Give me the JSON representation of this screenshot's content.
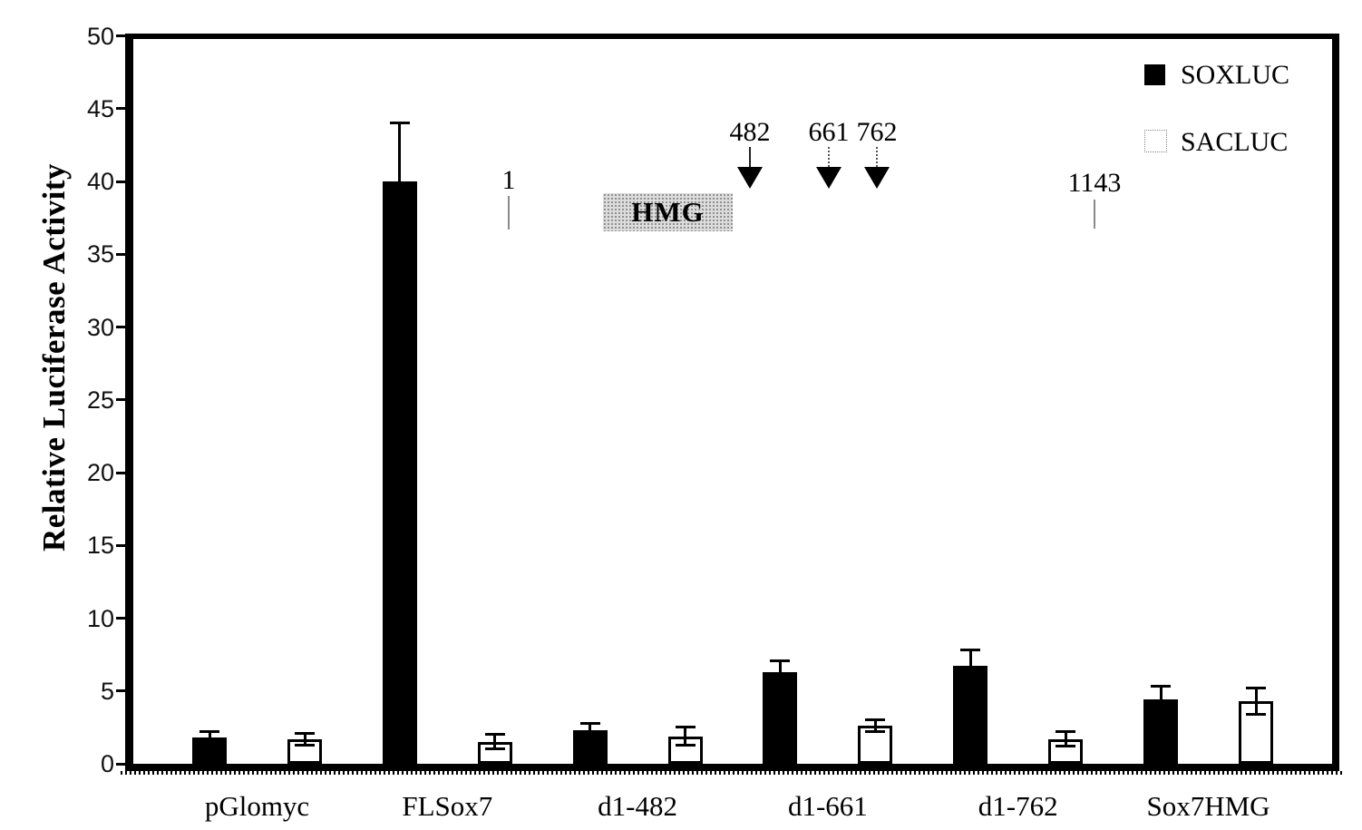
{
  "figure": {
    "type": "scientific-bar-chart",
    "background": "#ffffff",
    "ink_color": "#000000"
  },
  "chart_data": {
    "type": "bar",
    "title": "",
    "xlabel": "",
    "ylabel": "Relative Luciferase Activity",
    "ylim": [
      0,
      50
    ],
    "yticks": [
      0,
      5,
      10,
      15,
      20,
      25,
      30,
      35,
      40,
      45,
      50
    ],
    "grid": false,
    "legend_position": "top-right-inside",
    "error_bars": true,
    "categories": [
      "pGlomyc",
      "FLSox7",
      "d1-482",
      "d1-661",
      "d1-762",
      "Sox7HMG"
    ],
    "series": [
      {
        "name": "SOXLUC",
        "style": "filled-black",
        "color": "#000000",
        "values": [
          1.8,
          40.0,
          2.3,
          6.3,
          6.7,
          4.4
        ],
        "errors": [
          0.4,
          4.0,
          0.5,
          0.8,
          1.1,
          0.9
        ]
      },
      {
        "name": "SACLUC",
        "style": "open-white",
        "color": "#ffffff",
        "values": [
          1.7,
          1.5,
          1.9,
          2.6,
          1.7,
          4.3
        ],
        "errors": [
          0.4,
          0.5,
          0.6,
          0.4,
          0.5,
          0.9
        ]
      }
    ]
  },
  "legend": {
    "items": [
      {
        "label": "SOXLUC",
        "swatch": "black-filled-square"
      },
      {
        "label": "SACLUC",
        "swatch": "white-open-square"
      }
    ]
  },
  "inset": {
    "description": "Sox7 construct schematic",
    "domain_label": "HMG",
    "positions": [
      {
        "label": "1",
        "marker": "tick"
      },
      {
        "label": "482",
        "marker": "arrow-solid-line"
      },
      {
        "label": "661",
        "marker": "arrow-dotted-line"
      },
      {
        "label": "762",
        "marker": "arrow-dotted-line"
      },
      {
        "label": "1143",
        "marker": "tick"
      }
    ]
  }
}
